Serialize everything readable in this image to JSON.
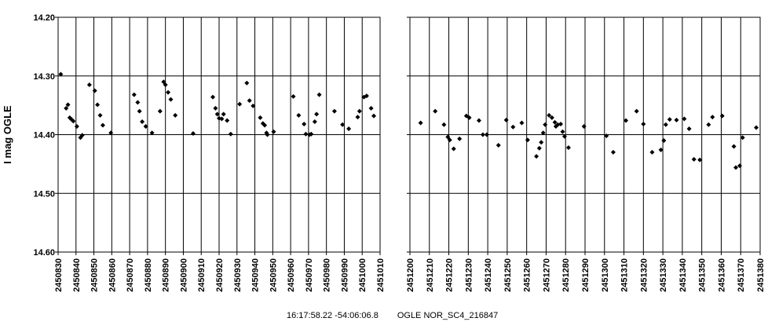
{
  "chart_data": {
    "type": "scatter",
    "ylabel": "I mag OGLE",
    "yticks": [
      "14.20",
      "14.30",
      "14.40",
      "14.50",
      "14.60"
    ],
    "ylim": [
      14.6,
      14.2
    ],
    "y_inverted": true,
    "grid": true,
    "marker_color": "#000000",
    "caption": {
      "coords": "16:17:58.22 -54:06:06.8",
      "object": "OGLE NOR_SC4_216847"
    },
    "panels": [
      {
        "xlim": [
          2450830,
          2451010
        ],
        "xticks": [
          "2450830",
          "2450840",
          "2450850",
          "2450860",
          "2450870",
          "2450880",
          "2450890",
          "2450900",
          "2450910",
          "2450920",
          "2450930",
          "2450940",
          "2450950",
          "2450960",
          "2450970",
          "2450980",
          "2450990",
          "2451000",
          "2451010"
        ],
        "points": [
          [
            2450831.5,
            14.297
          ],
          [
            2450834.5,
            14.355
          ],
          [
            2450835.5,
            14.349
          ],
          [
            2450836.5,
            14.371
          ],
          [
            2450837.5,
            14.374
          ],
          [
            2450838.5,
            14.377
          ],
          [
            2450840.5,
            14.386
          ],
          [
            2450842.5,
            14.405
          ],
          [
            2450843.5,
            14.401
          ],
          [
            2450847.5,
            14.315
          ],
          [
            2450850.5,
            14.325
          ],
          [
            2450852.0,
            14.349
          ],
          [
            2450853.5,
            14.367
          ],
          [
            2450855.0,
            14.384
          ],
          [
            2450859.5,
            14.397
          ],
          [
            2450872.5,
            14.332
          ],
          [
            2450874.5,
            14.345
          ],
          [
            2450875.5,
            14.36
          ],
          [
            2450877.0,
            14.378
          ],
          [
            2450879.0,
            14.386
          ],
          [
            2450882.5,
            14.397
          ],
          [
            2450887.0,
            14.36
          ],
          [
            2450889.0,
            14.31
          ],
          [
            2450890.0,
            14.315
          ],
          [
            2450891.5,
            14.328
          ],
          [
            2450893.0,
            14.34
          ],
          [
            2450895.5,
            14.367
          ],
          [
            2450905.5,
            14.398
          ],
          [
            2450916.5,
            14.336
          ],
          [
            2450918.0,
            14.355
          ],
          [
            2450919.0,
            14.365
          ],
          [
            2450920.0,
            14.372
          ],
          [
            2450921.5,
            14.373
          ],
          [
            2450922.5,
            14.365
          ],
          [
            2450924.5,
            14.376
          ],
          [
            2450926.5,
            14.399
          ],
          [
            2450931.5,
            14.348
          ],
          [
            2450935.5,
            14.312
          ],
          [
            2450937.0,
            14.342
          ],
          [
            2450939.0,
            14.351
          ],
          [
            2450943.0,
            14.371
          ],
          [
            2450944.5,
            14.381
          ],
          [
            2450945.5,
            14.384
          ],
          [
            2450946.5,
            14.397
          ],
          [
            2450947.0,
            14.4
          ],
          [
            2450950.5,
            14.395
          ],
          [
            2450961.5,
            14.335
          ],
          [
            2450964.5,
            14.367
          ],
          [
            2450967.5,
            14.382
          ],
          [
            2450968.5,
            14.399
          ],
          [
            2450970.5,
            14.4
          ],
          [
            2450971.5,
            14.399
          ],
          [
            2450973.5,
            14.378
          ],
          [
            2450974.5,
            14.365
          ],
          [
            2450976.0,
            14.332
          ],
          [
            2450984.5,
            14.36
          ],
          [
            2450989.0,
            14.383
          ],
          [
            2450992.5,
            14.39
          ],
          [
            2450997.5,
            14.37
          ],
          [
            2450998.5,
            14.36
          ],
          [
            2451001.0,
            14.336
          ],
          [
            2451002.5,
            14.334
          ],
          [
            2451005.0,
            14.355
          ],
          [
            2451006.5,
            14.368
          ]
        ]
      },
      {
        "xlim": [
          2451200,
          2451380
        ],
        "xticks": [
          "2451200",
          "2451210",
          "2451220",
          "2451230",
          "2451240",
          "2451250",
          "2451260",
          "2451270",
          "2451280",
          "2451290",
          "2451300",
          "2451310",
          "2451320",
          "2451330",
          "2451340",
          "2451350",
          "2451360",
          "2451370",
          "2451380"
        ],
        "points": [
          [
            2451205.5,
            14.38
          ],
          [
            2451213.0,
            14.36
          ],
          [
            2451217.5,
            14.383
          ],
          [
            2451219.5,
            14.404
          ],
          [
            2451220.5,
            14.409
          ],
          [
            2451222.5,
            14.424
          ],
          [
            2451225.5,
            14.407
          ],
          [
            2451229.0,
            14.368
          ],
          [
            2451230.5,
            14.371
          ],
          [
            2451235.5,
            14.376
          ],
          [
            2451237.5,
            14.4
          ],
          [
            2451239.5,
            14.4
          ],
          [
            2451245.5,
            14.418
          ],
          [
            2451249.5,
            14.375
          ],
          [
            2451253.0,
            14.387
          ],
          [
            2451257.5,
            14.38
          ],
          [
            2451260.5,
            14.409
          ],
          [
            2451265.0,
            14.437
          ],
          [
            2451266.5,
            14.423
          ],
          [
            2451267.5,
            14.413
          ],
          [
            2451268.5,
            14.397
          ],
          [
            2451269.5,
            14.383
          ],
          [
            2451271.5,
            14.367
          ],
          [
            2451273.0,
            14.371
          ],
          [
            2451274.5,
            14.379
          ],
          [
            2451275.0,
            14.386
          ],
          [
            2451276.0,
            14.383
          ],
          [
            2451277.5,
            14.382
          ],
          [
            2451278.5,
            14.395
          ],
          [
            2451279.5,
            14.403
          ],
          [
            2451281.5,
            14.422
          ],
          [
            2451289.5,
            14.386
          ],
          [
            2451301.0,
            14.402
          ],
          [
            2451304.5,
            14.43
          ],
          [
            2451311.0,
            14.376
          ],
          [
            2451316.5,
            14.36
          ],
          [
            2451320.0,
            14.382
          ],
          [
            2451324.5,
            14.43
          ],
          [
            2451329.0,
            14.426
          ],
          [
            2451330.5,
            14.41
          ],
          [
            2451331.5,
            14.383
          ],
          [
            2451333.5,
            14.374
          ],
          [
            2451337.0,
            14.375
          ],
          [
            2451341.0,
            14.373
          ],
          [
            2451343.5,
            14.39
          ],
          [
            2451346.0,
            14.442
          ],
          [
            2451349.0,
            14.443
          ],
          [
            2451353.5,
            14.383
          ],
          [
            2451355.5,
            14.37
          ],
          [
            2451360.5,
            14.368
          ],
          [
            2451366.5,
            14.42
          ],
          [
            2451367.5,
            14.456
          ],
          [
            2451369.5,
            14.453
          ],
          [
            2451371.0,
            14.405
          ],
          [
            2451378.0,
            14.388
          ]
        ]
      }
    ]
  }
}
